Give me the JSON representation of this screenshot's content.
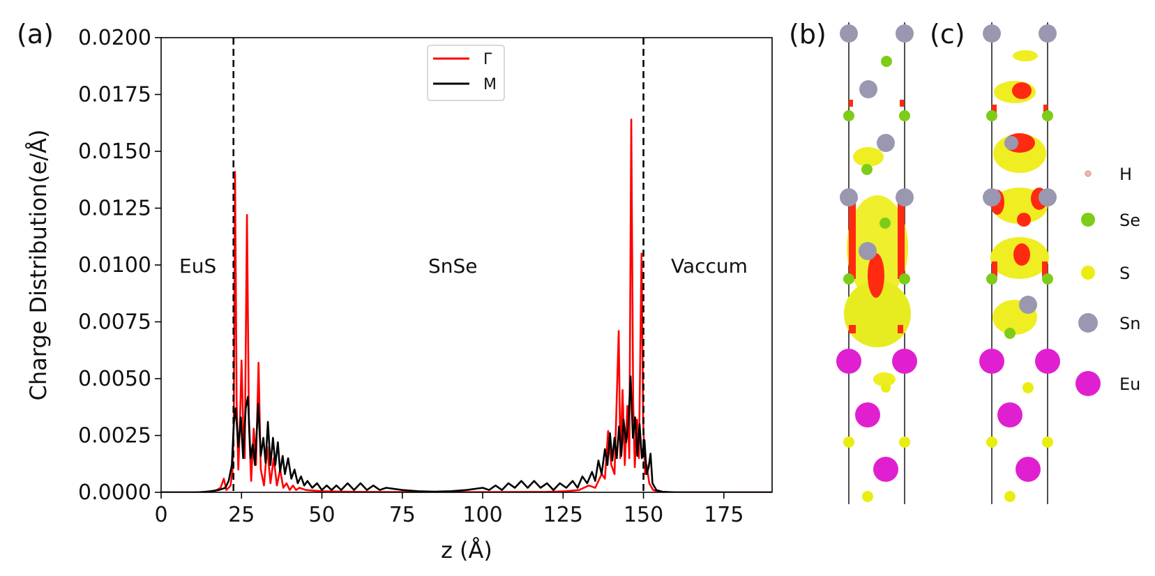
{
  "panel_labels": {
    "a": "(a)",
    "b": "(b)",
    "c": "(c)"
  },
  "colors": {
    "gamma": "#ff0000",
    "m": "#000000",
    "H": "#f4b8b4",
    "Se": "#7ccc18",
    "S": "#e8ee10",
    "Sn": "#9a98b0",
    "Eu": "#e020d0",
    "density_yellow": "#eeee22",
    "density_red": "#ff2a10"
  },
  "chart_data": {
    "type": "line",
    "title": "",
    "xlabel": "z (Å)",
    "ylabel": "Charge Distribution(e/Å)",
    "xlim": [
      0,
      190
    ],
    "ylim": [
      0,
      0.02
    ],
    "xticks": [
      "0",
      "25",
      "50",
      "75",
      "100",
      "125",
      "150",
      "175"
    ],
    "yticks": [
      "0.0000",
      "0.0025",
      "0.0050",
      "0.0075",
      "0.0100",
      "0.0125",
      "0.0150",
      "0.0175",
      "0.0200"
    ],
    "vlines": [
      22.5,
      150.0
    ],
    "legend": {
      "position": "top-center",
      "entries": [
        "Γ",
        "M"
      ]
    },
    "annotations": [
      "EuS",
      "SnSe",
      "Vaccum"
    ],
    "series": [
      {
        "name": "Γ",
        "color": "#ff0000",
        "points": [
          [
            0,
            0
          ],
          [
            10,
            0
          ],
          [
            14,
            2e-05
          ],
          [
            17,
            8e-05
          ],
          [
            18.5,
            0.0002
          ],
          [
            19.5,
            0.0006
          ],
          [
            20.3,
            0.0001
          ],
          [
            21,
            0.0002
          ],
          [
            21.6,
            0.0003
          ],
          [
            22.2,
            0.001
          ],
          [
            22.6,
            0.0031
          ],
          [
            23,
            0.0141
          ],
          [
            23.5,
            0.004
          ],
          [
            24,
            0.001
          ],
          [
            24.5,
            0.003
          ],
          [
            25,
            0.0058
          ],
          [
            25.5,
            0.003
          ],
          [
            26,
            0.0015
          ],
          [
            26.7,
            0.0122
          ],
          [
            27.3,
            0.003
          ],
          [
            28,
            0.0005
          ],
          [
            28.8,
            0.0028
          ],
          [
            29.5,
            0.0012
          ],
          [
            30.3,
            0.0057
          ],
          [
            31,
            0.001
          ],
          [
            32,
            0.0003
          ],
          [
            33,
            0.002
          ],
          [
            34,
            0.0004
          ],
          [
            35,
            0.0015
          ],
          [
            36,
            0.0003
          ],
          [
            37,
            0.001
          ],
          [
            38,
            0.0002
          ],
          [
            39,
            0.0004
          ],
          [
            40,
            0.0001
          ],
          [
            41,
            0.0003
          ],
          [
            42,
            0.0001
          ],
          [
            43,
            0.0002
          ],
          [
            45,
            0.0001
          ],
          [
            50,
            5e-05
          ],
          [
            60,
            2e-05
          ],
          [
            80,
            1e-05
          ],
          [
            100,
            1e-05
          ],
          [
            120,
            2e-05
          ],
          [
            126,
            5e-05
          ],
          [
            130,
            0.0001
          ],
          [
            133,
            0.0003
          ],
          [
            135,
            0.0002
          ],
          [
            137,
            0.0008
          ],
          [
            138,
            0.0006
          ],
          [
            139,
            0.0027
          ],
          [
            140,
            0.0012
          ],
          [
            141,
            0.0008
          ],
          [
            142.3,
            0.0071
          ],
          [
            142.8,
            0.0015
          ],
          [
            143.5,
            0.0045
          ],
          [
            144.2,
            0.0012
          ],
          [
            145,
            0.0038
          ],
          [
            145.6,
            0.0015
          ],
          [
            146.2,
            0.0164
          ],
          [
            146.8,
            0.004
          ],
          [
            147.3,
            0.0011
          ],
          [
            148,
            0.0032
          ],
          [
            148.6,
            0.0015
          ],
          [
            149.4,
            0.0105
          ],
          [
            149.9,
            0.0032
          ],
          [
            150.5,
            0.0008
          ],
          [
            151,
            0.0012
          ],
          [
            151.8,
            0.0004
          ],
          [
            153,
            0.0001
          ],
          [
            155,
            2e-05
          ],
          [
            160,
            0
          ],
          [
            190,
            0
          ]
        ]
      },
      {
        "name": "M",
        "color": "#000000",
        "points": [
          [
            0,
            0
          ],
          [
            12,
            0
          ],
          [
            15,
            4e-05
          ],
          [
            18,
            0.0001
          ],
          [
            20,
            0.0002
          ],
          [
            21,
            0.0005
          ],
          [
            22,
            0.0012
          ],
          [
            22.6,
            0.003
          ],
          [
            23.2,
            0.0037
          ],
          [
            24,
            0.002
          ],
          [
            24.8,
            0.0033
          ],
          [
            25.5,
            0.0015
          ],
          [
            26.3,
            0.0037
          ],
          [
            27,
            0.0042
          ],
          [
            27.8,
            0.0015
          ],
          [
            28.5,
            0.0021
          ],
          [
            29.2,
            0.0012
          ],
          [
            30.2,
            0.0039
          ],
          [
            31,
            0.0016
          ],
          [
            31.8,
            0.0024
          ],
          [
            32.5,
            0.0013
          ],
          [
            33.2,
            0.0031
          ],
          [
            34,
            0.0012
          ],
          [
            34.8,
            0.0024
          ],
          [
            35.5,
            0.0012
          ],
          [
            36.3,
            0.0022
          ],
          [
            37,
            0.0009
          ],
          [
            37.8,
            0.0016
          ],
          [
            38.5,
            0.0008
          ],
          [
            39.5,
            0.0015
          ],
          [
            40.5,
            0.0006
          ],
          [
            41.5,
            0.001
          ],
          [
            42.5,
            0.0004
          ],
          [
            43.5,
            0.0007
          ],
          [
            44.5,
            0.0003
          ],
          [
            45.5,
            0.0005
          ],
          [
            47,
            0.0002
          ],
          [
            48.5,
            0.0004
          ],
          [
            50,
            0.0001
          ],
          [
            51.5,
            0.0003
          ],
          [
            53,
            0.0001
          ],
          [
            54.5,
            0.0003
          ],
          [
            56,
            0.0001
          ],
          [
            58,
            0.0004
          ],
          [
            60,
            0.0001
          ],
          [
            62,
            0.0004
          ],
          [
            64,
            0.0001
          ],
          [
            66,
            0.0003
          ],
          [
            68,
            0.0001
          ],
          [
            70,
            0.0002
          ],
          [
            75,
            0.0001
          ],
          [
            80,
            5e-05
          ],
          [
            85,
            3e-05
          ],
          [
            90,
            5e-05
          ],
          [
            95,
            0.0001
          ],
          [
            100,
            0.0002
          ],
          [
            102,
            0.0001
          ],
          [
            104,
            0.0003
          ],
          [
            106,
            0.0001
          ],
          [
            108,
            0.0004
          ],
          [
            110,
            0.0002
          ],
          [
            112,
            0.0005
          ],
          [
            114,
            0.0002
          ],
          [
            116,
            0.0005
          ],
          [
            118,
            0.0002
          ],
          [
            120,
            0.0004
          ],
          [
            122,
            0.0001
          ],
          [
            124,
            0.0004
          ],
          [
            126,
            0.0002
          ],
          [
            128,
            0.0005
          ],
          [
            129.5,
            0.0002
          ],
          [
            131,
            0.0007
          ],
          [
            132.5,
            0.0004
          ],
          [
            134,
            0.0009
          ],
          [
            135,
            0.0005
          ],
          [
            136,
            0.0014
          ],
          [
            137,
            0.0008
          ],
          [
            138,
            0.0019
          ],
          [
            138.8,
            0.0012
          ],
          [
            139.6,
            0.0026
          ],
          [
            140.3,
            0.0014
          ],
          [
            141,
            0.0024
          ],
          [
            141.7,
            0.0015
          ],
          [
            142.4,
            0.0029
          ],
          [
            143.1,
            0.0016
          ],
          [
            143.8,
            0.0032
          ],
          [
            144.6,
            0.0022
          ],
          [
            145.3,
            0.003
          ],
          [
            146,
            0.0051
          ],
          [
            146.7,
            0.0024
          ],
          [
            147.4,
            0.0033
          ],
          [
            148.1,
            0.0016
          ],
          [
            148.8,
            0.003
          ],
          [
            149.5,
            0.0015
          ],
          [
            150.3,
            0.0023
          ],
          [
            151,
            0.0008
          ],
          [
            151.6,
            0.0011
          ],
          [
            152.2,
            0.0017
          ],
          [
            152.8,
            0.0004
          ],
          [
            154,
            0.0001
          ],
          [
            156,
            2e-05
          ],
          [
            160,
            0
          ],
          [
            190,
            0
          ]
        ]
      }
    ]
  },
  "atom_legend": [
    {
      "symbol": "H",
      "label": "H"
    },
    {
      "symbol": "Se",
      "label": "Se"
    },
    {
      "symbol": "S",
      "label": "S"
    },
    {
      "symbol": "Sn",
      "label": "Sn"
    },
    {
      "symbol": "Eu",
      "label": "Eu"
    }
  ]
}
